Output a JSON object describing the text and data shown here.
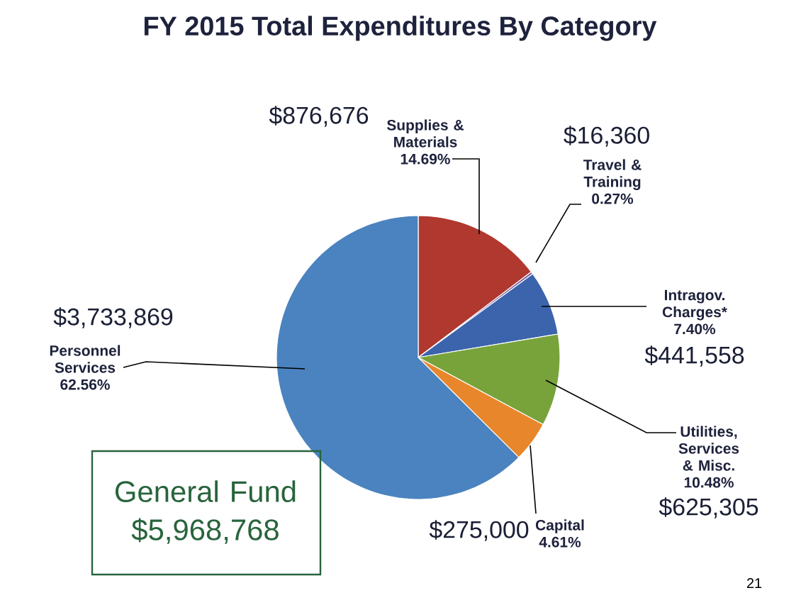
{
  "chart_data": {
    "type": "pie",
    "title": "FY 2015 Total Expenditures By Category",
    "categories": [
      "Supplies & Materials",
      "Travel & Training",
      "Intragov. Charges*",
      "Utilities, Services & Misc.",
      "Capital",
      "Personnel Services"
    ],
    "values": [
      876676,
      16360,
      441558,
      625305,
      275000,
      3733869
    ],
    "value_labels": [
      "$876,676",
      "$16,360",
      "$441,558",
      "$625,305",
      "$275,000",
      "$3,733,869"
    ],
    "colors": [
      "#b0382f",
      "#7d5a9c",
      "#3c64ad",
      "#78a33b",
      "#e8862c",
      "#4a83bf"
    ],
    "annotations": [
      "14.69%",
      "0.27%",
      "7.40%",
      "10.48%",
      "4.61%",
      "62.56%",
      "General Fund",
      "$5,968,768",
      "21"
    ]
  }
}
